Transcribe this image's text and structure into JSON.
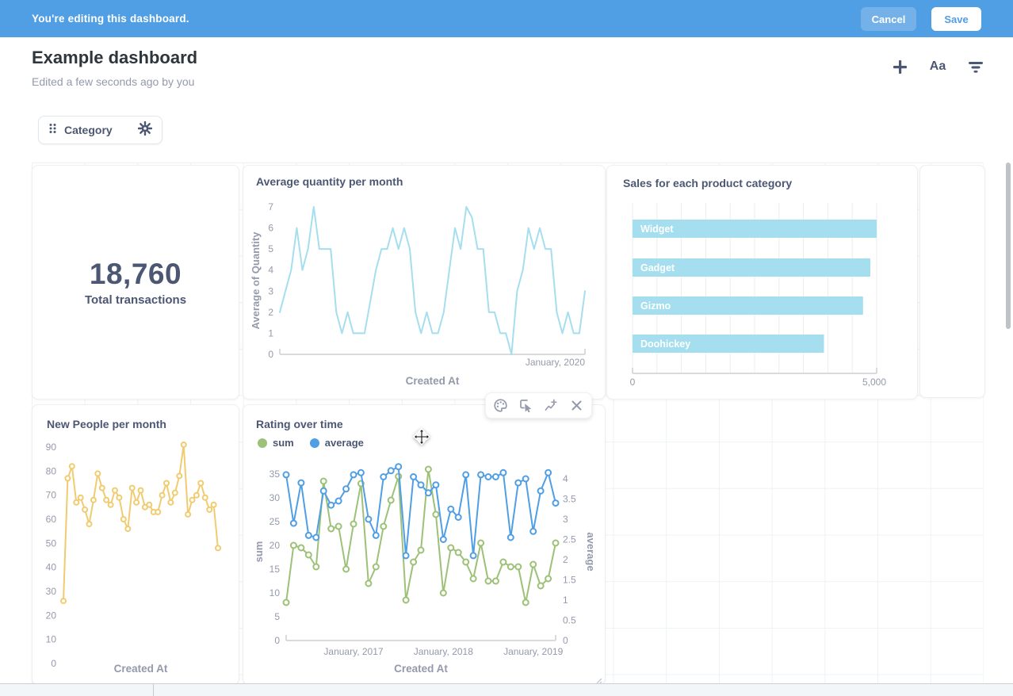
{
  "edit_bar": {
    "message": "You're editing this dashboard.",
    "cancel_label": "Cancel",
    "save_label": "Save"
  },
  "header": {
    "title": "Example dashboard",
    "subtitle": "Edited a few seconds ago by you",
    "text_icon_label": "Aa",
    "icons": [
      "plus-icon",
      "text-style-icon",
      "filter-icon"
    ]
  },
  "filter": {
    "label": "Category",
    "icons": [
      "drag-grip-icon",
      "gear-icon"
    ]
  },
  "cards": {
    "scalar": {
      "value": "18,760",
      "label": "Total transactions"
    }
  },
  "hover_toolbar": {
    "icons": [
      "palette-icon",
      "click-behavior-icon",
      "add-series-icon",
      "remove-icon"
    ]
  },
  "colors": {
    "brand_blue": "#509EE3",
    "text_dark": "#4C5773",
    "text_muted": "#949AAB",
    "cyan": "#A5DEEE",
    "yellow": "#F0CB70",
    "green": "#9CC177",
    "series_blue": "#509EE3"
  },
  "chart_data": [
    {
      "type": "line",
      "title": "Average quantity per month",
      "xlabel": "Created At",
      "ylabel": "Average of Quantity",
      "ylim": [
        0,
        7
      ],
      "yticks": [
        0,
        1,
        2,
        3,
        4,
        5,
        6,
        7
      ],
      "x_end_label": "January, 2020",
      "grid": false,
      "series": [
        {
          "name": "Average of Quantity",
          "color": "#A5DEEE",
          "markers": false,
          "values": [
            2,
            3,
            4,
            6,
            4,
            5,
            7,
            5,
            5,
            5,
            2,
            1,
            2,
            1,
            1,
            1,
            2.5,
            4,
            5,
            5,
            6,
            5,
            6,
            5,
            2,
            1,
            2,
            1,
            1,
            2,
            4,
            6,
            5,
            7,
            6.5,
            5,
            5,
            2,
            2,
            1,
            1,
            0,
            3,
            4,
            6,
            5,
            6,
            5,
            5,
            2,
            1,
            2,
            1,
            1,
            3
          ]
        }
      ]
    },
    {
      "type": "bar",
      "orientation": "horizontal",
      "title": "Sales for each product category",
      "categories": [
        "Widget",
        "Gadget",
        "Gizmo",
        "Doohickey"
      ],
      "values": [
        5000,
        4870,
        4720,
        3920
      ],
      "xlim": [
        0,
        5000
      ],
      "xtick_labels": [
        "0",
        "5,000"
      ],
      "grid": true,
      "bar_color": "#A5DEEE",
      "bar_label_color": "#FFFFFF"
    },
    {
      "type": "line",
      "title": "New People per month",
      "xlabel": "Created At",
      "ylabel": "",
      "ylim": [
        0,
        90
      ],
      "yticks": [
        0,
        10,
        20,
        30,
        40,
        50,
        60,
        70,
        80,
        90
      ],
      "grid": false,
      "series": [
        {
          "name": "New People",
          "color": "#F0CB70",
          "markers": true,
          "values": [
            26,
            77,
            82,
            67,
            69,
            64,
            58,
            68,
            79,
            73,
            68,
            66,
            72,
            69,
            60,
            56,
            73,
            67,
            72,
            65,
            66,
            63,
            63,
            70,
            75,
            67,
            71,
            78,
            91,
            62,
            68,
            70,
            75,
            69,
            64,
            66,
            48
          ]
        }
      ]
    },
    {
      "type": "line",
      "dual_axis": true,
      "title": "Rating over time",
      "xlabel": "Created At",
      "legend": [
        "sum",
        "average"
      ],
      "legend_position": "top-left",
      "left_axis": {
        "label": "sum",
        "ylim": [
          0,
          37.3
        ],
        "ticks": [
          0,
          5,
          10,
          15,
          20,
          25,
          30,
          35
        ]
      },
      "right_axis": {
        "label": "average",
        "ylim": [
          0,
          4.39
        ],
        "ticks": [
          0,
          0.5,
          1,
          1.5,
          2,
          2.5,
          3,
          3.5,
          4
        ]
      },
      "xticks": [
        {
          "label": "January, 2017",
          "index": 9
        },
        {
          "label": "January, 2018",
          "index": 21
        },
        {
          "label": "January, 2019",
          "index": 33
        }
      ],
      "series": [
        {
          "name": "sum",
          "axis": "left",
          "color": "#9CC177",
          "markers": true,
          "values": [
            8,
            20,
            19.5,
            18,
            15.5,
            33.5,
            23.5,
            24,
            15,
            24.5,
            33,
            12,
            15.5,
            24,
            29.5,
            34.5,
            8.5,
            16.5,
            19,
            36,
            26.5,
            10,
            19.5,
            18.5,
            16.5,
            13,
            20.5,
            12.5,
            12.5,
            16.5,
            15.5,
            15.5,
            8,
            16,
            11.5,
            13,
            20.5
          ]
        },
        {
          "name": "average",
          "axis": "right",
          "color": "#509EE3",
          "markers": true,
          "values": [
            4.1,
            2.9,
            3.9,
            2.6,
            2.55,
            3.7,
            3.35,
            3.45,
            3.75,
            4.1,
            4.15,
            3.0,
            2.6,
            4.05,
            4.2,
            4.3,
            2.1,
            4.05,
            3.85,
            3.65,
            3.85,
            2.5,
            3.25,
            3.05,
            4.1,
            2.1,
            4.1,
            4.05,
            4.05,
            4.15,
            2.55,
            3.9,
            4.0,
            2.7,
            3.7,
            4.15,
            3.4
          ]
        }
      ]
    }
  ]
}
